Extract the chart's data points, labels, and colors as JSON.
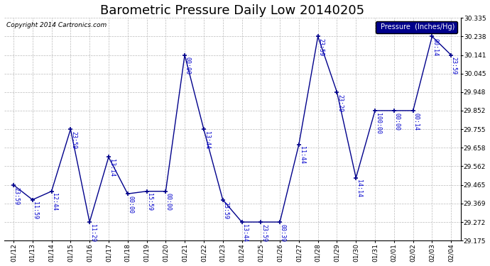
{
  "title": "Barometric Pressure Daily Low 20140205",
  "copyright": "Copyright 2014 Cartronics.com",
  "legend_label": "Pressure  (Inches/Hg)",
  "background_color": "#ffffff",
  "line_color": "#00008B",
  "grid_color": "#bbbbbb",
  "annotation_color": "#0000cc",
  "dates": [
    "01/12",
    "01/13",
    "01/14",
    "01/15",
    "01/16",
    "01/17",
    "01/18",
    "01/19",
    "01/20",
    "01/21",
    "01/22",
    "01/23",
    "01/24",
    "01/25",
    "01/26",
    "01/27",
    "01/28",
    "01/29",
    "01/30",
    "01/31",
    "02/01",
    "02/02",
    "02/03",
    "02/04"
  ],
  "values": [
    29.465,
    29.388,
    29.432,
    29.755,
    29.272,
    29.61,
    29.419,
    29.432,
    29.432,
    30.141,
    29.755,
    29.388,
    29.272,
    29.272,
    29.272,
    29.676,
    30.238,
    29.948,
    29.502,
    29.852,
    29.852,
    29.852,
    30.238,
    30.141
  ],
  "time_labels": [
    "23:59",
    "11:59",
    "12:44",
    "23:59",
    "11:29",
    "13:14",
    "00:00",
    "15:59",
    "00:00",
    "00:00",
    "13:44",
    "23:59",
    "13:44",
    "23:59",
    "00:39",
    "11:44",
    "23:59",
    "23:29",
    "14:14",
    "100:00",
    "00:00",
    "00:14",
    "00:14",
    "23:59"
  ],
  "ylim_min": 29.175,
  "ylim_max": 30.335,
  "yticks": [
    29.175,
    29.272,
    29.369,
    29.465,
    29.562,
    29.658,
    29.755,
    29.852,
    29.948,
    30.045,
    30.141,
    30.238,
    30.335
  ]
}
